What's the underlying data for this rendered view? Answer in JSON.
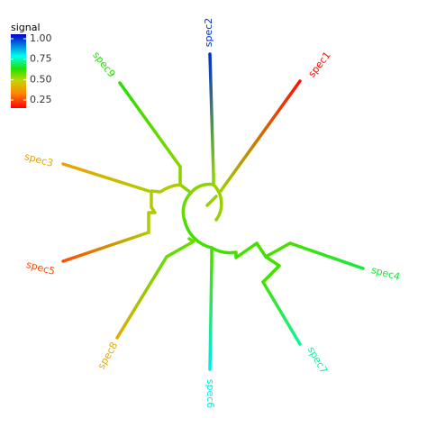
{
  "legend": {
    "title": "signal",
    "ticks": [
      {
        "value": 1,
        "label": "1.00"
      },
      {
        "value": 0.75,
        "label": "0.75"
      },
      {
        "value": 0.5,
        "label": "0.50"
      },
      {
        "value": 0.25,
        "label": "0.25"
      }
    ]
  },
  "tips": [
    {
      "label": "spec2",
      "signal": 0.95
    },
    {
      "label": "spec1",
      "signal": 0.12
    },
    {
      "label": "spec4",
      "signal": 0.62
    },
    {
      "label": "spec7",
      "signal": 0.68
    },
    {
      "label": "spec6",
      "signal": 0.75
    },
    {
      "label": "spec8",
      "signal": 0.35
    },
    {
      "label": "spec5",
      "signal": 0.2
    },
    {
      "label": "spec3",
      "signal": 0.33
    },
    {
      "label": "spec9",
      "signal": 0.58
    }
  ]
}
